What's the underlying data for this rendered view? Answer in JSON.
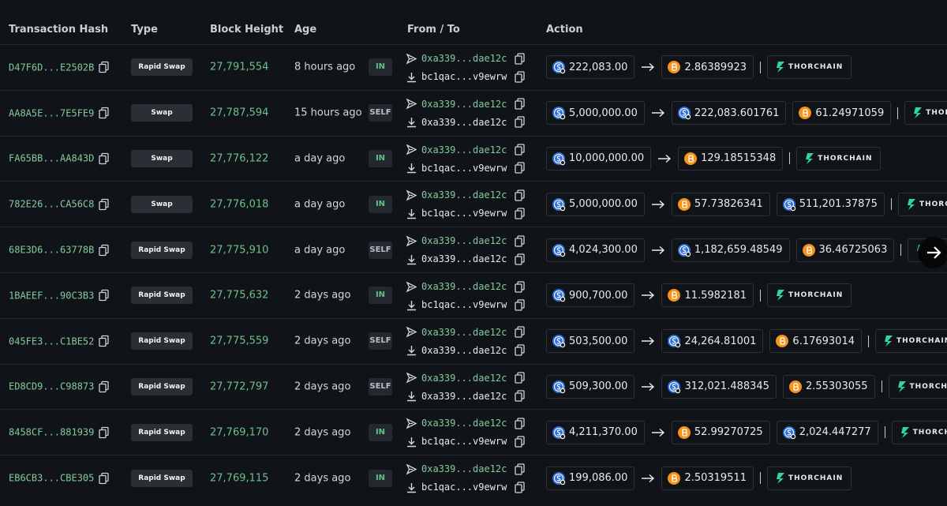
{
  "table": {
    "headers": [
      "Transaction Hash",
      "Type",
      "Block Height",
      "Age",
      "From / To",
      "Action"
    ],
    "rows": [
      {
        "hash": "D47F6D...E2502B",
        "type": "Rapid Swap",
        "block_height": "27,791,554",
        "age": "8 hours ago",
        "direction": "IN",
        "direction_color": "#5fc28a",
        "from": "0xa339...dae12c",
        "to": "bc1qac...v9ewrw",
        "input": {
          "amount": "222,083.00",
          "color": "#2f6fd8"
        },
        "outputs": [
          {
            "amount": "2.86389923",
            "color": "#f7931a"
          }
        ],
        "protocol": "THORCHAIN"
      },
      {
        "hash": "AA8A5E...7E5FE9",
        "type": "Swap",
        "block_height": "27,787,594",
        "age": "15 hours ago",
        "direction": "SELF",
        "direction_color": "#b9bec5",
        "from": "0xa339...dae12c",
        "to": "0xa339...dae12c",
        "input": {
          "amount": "5,000,000.00",
          "color": "#2f6fd8"
        },
        "outputs": [
          {
            "amount": "222,083.601761",
            "color": "#2f6fd8"
          },
          {
            "amount": "61.24971059",
            "color": "#f7931a"
          }
        ],
        "protocol": "THORCHAIN"
      },
      {
        "hash": "FA65BB...AA843D",
        "type": "Swap",
        "block_height": "27,776,122",
        "age": "a day ago",
        "direction": "IN",
        "direction_color": "#5fc28a",
        "from": "0xa339...dae12c",
        "to": "bc1qac...v9ewrw",
        "input": {
          "amount": "10,000,000.00",
          "color": "#2f6fd8"
        },
        "outputs": [
          {
            "amount": "129.18515348",
            "color": "#f7931a"
          }
        ],
        "protocol": "THORCHAIN"
      },
      {
        "hash": "782E26...CA56C8",
        "type": "Swap",
        "block_height": "27,776,018",
        "age": "a day ago",
        "direction": "IN",
        "direction_color": "#5fc28a",
        "from": "0xa339...dae12c",
        "to": "bc1qac...v9ewrw",
        "input": {
          "amount": "5,000,000.00",
          "color": "#2f6fd8"
        },
        "outputs": [
          {
            "amount": "57.73826341",
            "color": "#f7931a"
          },
          {
            "amount": "511,201.37875",
            "color": "#2f6fd8"
          }
        ],
        "protocol": "THORCHAIN"
      },
      {
        "hash": "68E3D6...63778B",
        "type": "Rapid Swap",
        "block_height": "27,775,910",
        "age": "a day ago",
        "direction": "SELF",
        "direction_color": "#b9bec5",
        "from": "0xa339...dae12c",
        "to": "0xa339...dae12c",
        "input": {
          "amount": "4,024,300.00",
          "color": "#2f6fd8"
        },
        "outputs": [
          {
            "amount": "1,182,659.48549",
            "color": "#2f6fd8"
          },
          {
            "amount": "36.46725063",
            "color": "#f7931a"
          }
        ],
        "protocol": "THORCHAIN"
      },
      {
        "hash": "1BAEEF...90C3B3",
        "type": "Rapid Swap",
        "block_height": "27,775,632",
        "age": "2 days ago",
        "direction": "IN",
        "direction_color": "#5fc28a",
        "from": "0xa339...dae12c",
        "to": "bc1qac...v9ewrw",
        "input": {
          "amount": "900,700.00",
          "color": "#2f6fd8"
        },
        "outputs": [
          {
            "amount": "11.5982181",
            "color": "#f7931a"
          }
        ],
        "protocol": "THORCHAIN"
      },
      {
        "hash": "045FE3...C1BE52",
        "type": "Rapid Swap",
        "block_height": "27,775,559",
        "age": "2 days ago",
        "direction": "SELF",
        "direction_color": "#b9bec5",
        "from": "0xa339...dae12c",
        "to": "0xa339...dae12c",
        "input": {
          "amount": "503,500.00",
          "color": "#2f6fd8"
        },
        "outputs": [
          {
            "amount": "24,264.81001",
            "color": "#2f6fd8"
          },
          {
            "amount": "6.17693014",
            "color": "#f7931a"
          }
        ],
        "protocol": "THORCHAIN"
      },
      {
        "hash": "ED8CD9...C98873",
        "type": "Rapid Swap",
        "block_height": "27,772,797",
        "age": "2 days ago",
        "direction": "SELF",
        "direction_color": "#b9bec5",
        "from": "0xa339...dae12c",
        "to": "0xa339...dae12c",
        "input": {
          "amount": "509,300.00",
          "color": "#2f6fd8"
        },
        "outputs": [
          {
            "amount": "312,021.488345",
            "color": "#2f6fd8"
          },
          {
            "amount": "2.55303055",
            "color": "#f7931a"
          }
        ],
        "protocol": "THORCHAIN"
      },
      {
        "hash": "8458CF...881939",
        "type": "Rapid Swap",
        "block_height": "27,769,170",
        "age": "2 days ago",
        "direction": "IN",
        "direction_color": "#5fc28a",
        "from": "0xa339...dae12c",
        "to": "bc1qac...v9ewrw",
        "input": {
          "amount": "4,211,370.00",
          "color": "#2f6fd8"
        },
        "outputs": [
          {
            "amount": "52.99270725",
            "color": "#f7931a"
          },
          {
            "amount": "2,024.447277",
            "color": "#2f6fd8"
          }
        ],
        "protocol": "THORCHAIN"
      },
      {
        "hash": "EB6CB3...CBE305",
        "type": "Rapid Swap",
        "block_height": "27,769,115",
        "age": "2 days ago",
        "direction": "IN",
        "direction_color": "#5fc28a",
        "from": "0xa339...dae12c",
        "to": "bc1qac...v9ewrw",
        "input": {
          "amount": "199,086.00",
          "color": "#2f6fd8"
        },
        "outputs": [
          {
            "amount": "2.50319511",
            "color": "#f7931a"
          }
        ],
        "protocol": "THORCHAIN"
      }
    ]
  }
}
